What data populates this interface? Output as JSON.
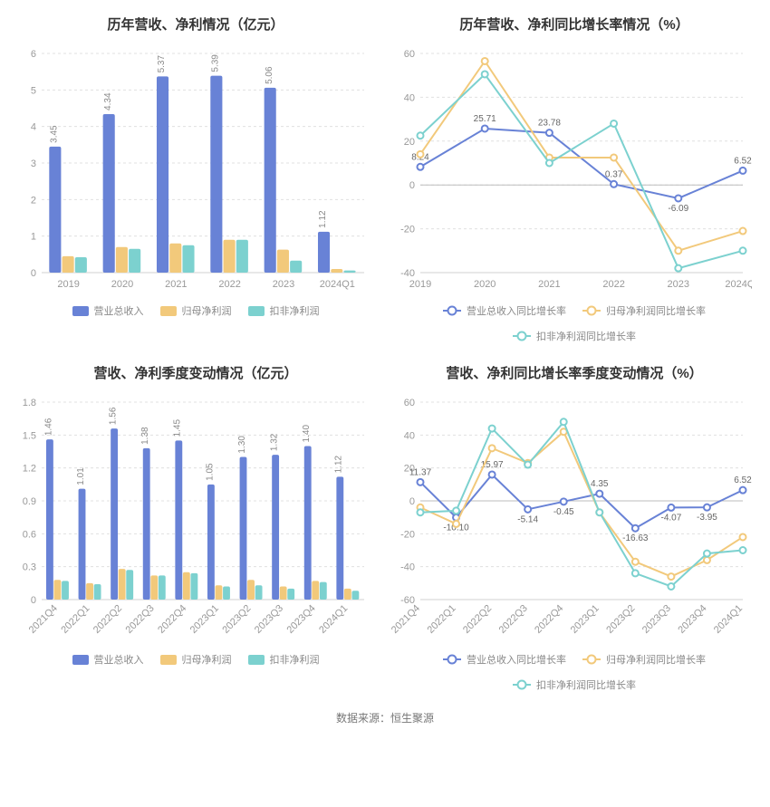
{
  "colors": {
    "series1": "#6882d6",
    "series2": "#f2c97b",
    "series3": "#7cd1cf",
    "grid": "#e0e0e0",
    "axis": "#d0d0d0",
    "text_muted": "#999999"
  },
  "source_line": "数据来源：恒生聚源",
  "panels": {
    "top_left": {
      "title": "历年营收、净利情况（亿元）",
      "type": "bar",
      "categories": [
        "2019",
        "2020",
        "2021",
        "2022",
        "2023",
        "2024Q1"
      ],
      "ylim": [
        0,
        6
      ],
      "yticks": [
        0,
        1,
        2,
        3,
        4,
        5,
        6
      ],
      "series": [
        {
          "key": "revenue",
          "label": "营业总收入",
          "color": "#6882d6",
          "values": [
            3.45,
            4.34,
            5.37,
            5.39,
            5.06,
            1.12
          ],
          "show_val": true
        },
        {
          "key": "ni_parent",
          "label": "归母净利润",
          "color": "#f2c97b",
          "values": [
            0.45,
            0.7,
            0.8,
            0.9,
            0.63,
            0.1
          ],
          "show_val": false
        },
        {
          "key": "ni_nonrecur",
          "label": "扣非净利润",
          "color": "#7cd1cf",
          "values": [
            0.42,
            0.65,
            0.75,
            0.9,
            0.33,
            0.06
          ],
          "show_val": false
        }
      ],
      "legend": [
        {
          "label": "营业总收入",
          "color": "#6882d6",
          "type": "bar"
        },
        {
          "label": "归母净利润",
          "color": "#f2c97b",
          "type": "bar"
        },
        {
          "label": "扣非净利润",
          "color": "#7cd1cf",
          "type": "bar"
        }
      ]
    },
    "top_right": {
      "title": "历年营收、净利同比增长率情况（%）",
      "type": "line",
      "categories": [
        "2019",
        "2020",
        "2021",
        "2022",
        "2023",
        "2024Q1"
      ],
      "ylim": [
        -40,
        60
      ],
      "yticks": [
        -40,
        -20,
        0,
        20,
        40,
        60
      ],
      "series": [
        {
          "key": "rev_growth",
          "label": "营业总收入同比增长率",
          "color": "#6882d6",
          "values": [
            8.24,
            25.71,
            23.78,
            0.37,
            -6.09,
            6.52
          ],
          "point_labels": [
            true,
            true,
            true,
            true,
            true,
            true
          ]
        },
        {
          "key": "ni_parent_growth",
          "label": "归母净利润同比增长率",
          "color": "#f2c97b",
          "values": [
            14.0,
            56.5,
            12.5,
            12.5,
            -30.0,
            -21.0
          ],
          "point_labels": [
            false,
            false,
            false,
            false,
            false,
            false
          ]
        },
        {
          "key": "ni_nonrecur_growth",
          "label": "扣非净利润同比增长率",
          "color": "#7cd1cf",
          "values": [
            22.5,
            50.5,
            10.0,
            28.0,
            -38.0,
            -30.0
          ],
          "point_labels": [
            false,
            false,
            false,
            false,
            false,
            false
          ]
        }
      ],
      "legend": [
        {
          "label": "营业总收入同比增长率",
          "color": "#6882d6",
          "type": "line"
        },
        {
          "label": "归母净利润同比增长率",
          "color": "#f2c97b",
          "type": "line"
        },
        {
          "label": "扣非净利润同比增长率",
          "color": "#7cd1cf",
          "type": "line"
        }
      ]
    },
    "bot_left": {
      "title": "营收、净利季度变动情况（亿元）",
      "type": "bar",
      "categories": [
        "2021Q4",
        "2022Q1",
        "2022Q2",
        "2022Q3",
        "2022Q4",
        "2023Q1",
        "2023Q2",
        "2023Q3",
        "2023Q4",
        "2024Q1"
      ],
      "ylim": [
        0,
        1.8
      ],
      "yticks": [
        0,
        0.3,
        0.6,
        0.9,
        1.2,
        1.5,
        1.8
      ],
      "x_rotate": true,
      "series": [
        {
          "key": "revenue",
          "label": "营业总收入",
          "color": "#6882d6",
          "values": [
            1.46,
            1.01,
            1.56,
            1.38,
            1.45,
            1.05,
            1.3,
            1.32,
            1.4,
            1.12
          ],
          "show_val": true
        },
        {
          "key": "ni_parent",
          "label": "归母净利润",
          "color": "#f2c97b",
          "values": [
            0.18,
            0.15,
            0.28,
            0.22,
            0.25,
            0.13,
            0.18,
            0.12,
            0.17,
            0.1
          ],
          "show_val": false
        },
        {
          "key": "ni_nonrecur",
          "label": "扣非净利润",
          "color": "#7cd1cf",
          "values": [
            0.17,
            0.14,
            0.27,
            0.22,
            0.24,
            0.12,
            0.13,
            0.1,
            0.16,
            0.08
          ],
          "show_val": false
        }
      ],
      "legend": [
        {
          "label": "营业总收入",
          "color": "#6882d6",
          "type": "bar"
        },
        {
          "label": "归母净利润",
          "color": "#f2c97b",
          "type": "bar"
        },
        {
          "label": "扣非净利润",
          "color": "#7cd1cf",
          "type": "bar"
        }
      ]
    },
    "bot_right": {
      "title": "营收、净利同比增长率季度变动情况（%）",
      "type": "line",
      "categories": [
        "2021Q4",
        "2022Q1",
        "2022Q2",
        "2022Q3",
        "2022Q4",
        "2023Q1",
        "2023Q2",
        "2023Q3",
        "2023Q4",
        "2024Q1"
      ],
      "ylim": [
        -60,
        60
      ],
      "yticks": [
        -60,
        -40,
        -20,
        0,
        20,
        40,
        60
      ],
      "x_rotate": true,
      "series": [
        {
          "key": "rev_growth",
          "label": "营业总收入同比增长率",
          "color": "#6882d6",
          "values": [
            11.37,
            -10.1,
            15.97,
            -5.14,
            -0.45,
            4.35,
            -16.63,
            -4.07,
            -3.95,
            6.52
          ],
          "point_labels": [
            true,
            true,
            true,
            true,
            true,
            true,
            true,
            true,
            true,
            true
          ]
        },
        {
          "key": "ni_parent_growth",
          "label": "归母净利润同比增长率",
          "color": "#f2c97b",
          "values": [
            -4.0,
            -14.0,
            32.0,
            23.0,
            42.0,
            -7.0,
            -37.0,
            -46.0,
            -36.0,
            -22.0
          ],
          "point_labels": [
            false,
            false,
            false,
            false,
            false,
            false,
            false,
            false,
            false,
            false
          ]
        },
        {
          "key": "ni_nonrecur_growth",
          "label": "扣非净利润同比增长率",
          "color": "#7cd1cf",
          "values": [
            -7.0,
            -6.0,
            44.0,
            22.0,
            48.0,
            -7.0,
            -44.0,
            -52.0,
            -32.0,
            -30.0
          ],
          "point_labels": [
            false,
            false,
            false,
            false,
            false,
            false,
            false,
            false,
            false,
            false
          ]
        }
      ],
      "legend": [
        {
          "label": "营业总收入同比增长率",
          "color": "#6882d6",
          "type": "line"
        },
        {
          "label": "归母净利润同比增长率",
          "color": "#f2c97b",
          "type": "line"
        },
        {
          "label": "扣非净利润同比增长率",
          "color": "#7cd1cf",
          "type": "line"
        }
      ]
    }
  }
}
